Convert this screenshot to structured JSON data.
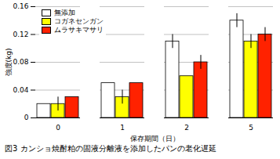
{
  "chart_data": {
    "type": "bar",
    "title": "図3 カンショ焼酎粕の固液分離液を添加したパンの老化遅延",
    "x_label": "保存期間（日）",
    "y_label": "強度(kg)",
    "categories": [
      "0",
      "1",
      "2",
      "5"
    ],
    "series": [
      {
        "name": "無添加",
        "color": "#ffffff",
        "values": [
          0.02,
          0.05,
          0.11,
          0.14
        ],
        "errors": [
          null,
          null,
          0.01,
          0.01
        ]
      },
      {
        "name": "コガネセンガン",
        "color": "#ffff00",
        "values": [
          0.02,
          0.03,
          0.06,
          0.11
        ],
        "errors": [
          0.01,
          0.01,
          null,
          0.01
        ]
      },
      {
        "name": "ムラサキマサリ",
        "color": "#ff2200",
        "values": [
          0.03,
          0.05,
          0.08,
          0.12
        ],
        "errors": [
          null,
          null,
          0.01,
          0.01
        ]
      }
    ],
    "ylim": [
      0,
      0.16
    ],
    "yticks": [
      0,
      0.04,
      0.08,
      0.12,
      0.16
    ],
    "grid": true,
    "legend": "top-left"
  }
}
